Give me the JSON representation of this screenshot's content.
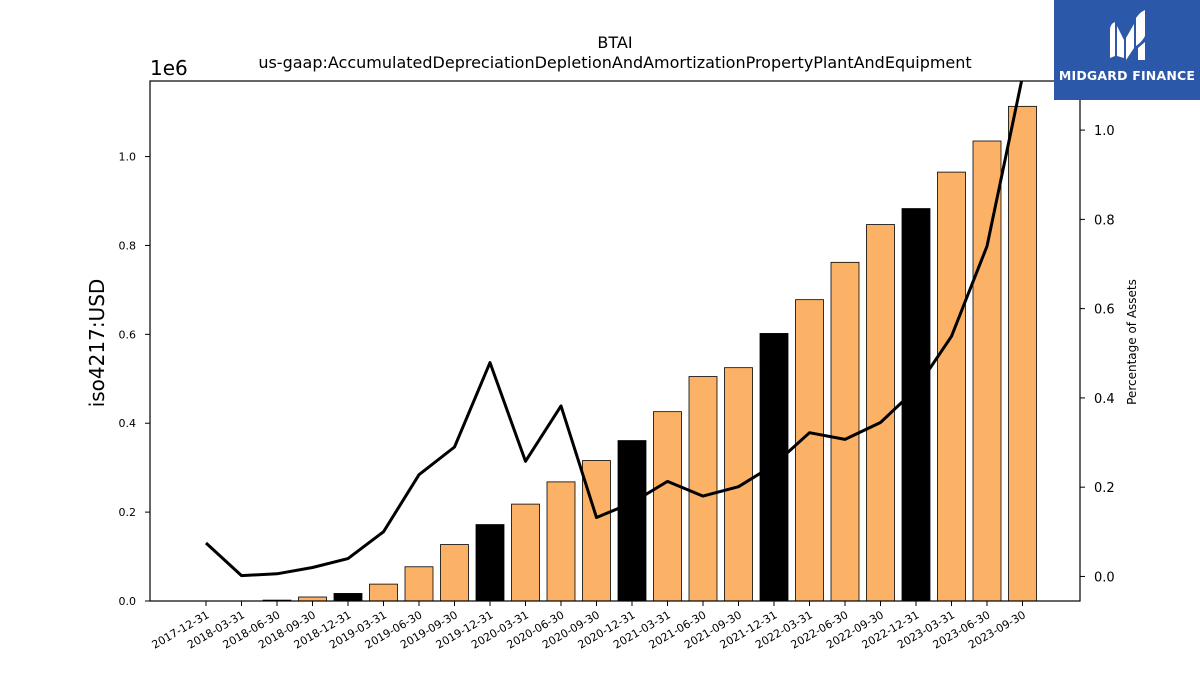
{
  "brand": {
    "name": "MIDGARD FINANCE",
    "icon": "midgard-logo-icon",
    "background": "#2b58a8"
  },
  "chart_data": {
    "type": "bar",
    "title": "BTAI",
    "subtitle": "us-gaap:AccumulatedDepreciationDepletionAndAmortizationPropertyPlantAndEquipment",
    "ylabel": "iso4217:USD",
    "y_scale_label": "1e6",
    "y2label": "Percentage of Assets",
    "ylim": [
      0,
      1170000
    ],
    "y2lim": [
      -0.055,
      1.11
    ],
    "yticks": [
      {
        "value": 0,
        "label": "0.0"
      },
      {
        "value": 200000,
        "label": "0.2"
      },
      {
        "value": 400000,
        "label": "0.4"
      },
      {
        "value": 600000,
        "label": "0.6"
      },
      {
        "value": 800000,
        "label": "0.8"
      },
      {
        "value": 1000000,
        "label": "1.0"
      }
    ],
    "y2ticks": [
      {
        "value": 0.0,
        "label": "0.0"
      },
      {
        "value": 0.2,
        "label": "0.2"
      },
      {
        "value": 0.4,
        "label": "0.4"
      },
      {
        "value": 0.6,
        "label": "0.6"
      },
      {
        "value": 0.8,
        "label": "0.8"
      },
      {
        "value": 1.0,
        "label": "1.0"
      }
    ],
    "categories": [
      "2017-12-31",
      "2018-03-31",
      "2018-06-30",
      "2018-09-30",
      "2018-12-31",
      "2019-03-31",
      "2019-06-30",
      "2019-09-30",
      "2019-12-31",
      "2020-03-31",
      "2020-06-30",
      "2020-09-30",
      "2020-12-31",
      "2021-03-31",
      "2021-06-30",
      "2021-09-30",
      "2021-12-31",
      "2022-03-31",
      "2022-06-30",
      "2022-09-30",
      "2022-12-31",
      "2023-03-31",
      "2023-06-30",
      "2023-09-30"
    ],
    "series": [
      {
        "kind": "bar",
        "axis": "left",
        "values": [
          0,
          0,
          2000,
          9000,
          17000,
          38000,
          77000,
          127000,
          172000,
          218000,
          268000,
          316000,
          361000,
          426000,
          505000,
          525000,
          602000,
          678000,
          762000,
          847000,
          883000,
          965000,
          1035000,
          1113000
        ],
        "colors": [
          "#fbb266",
          "#fbb266",
          "#fbb266",
          "#fbb266",
          "#000000",
          "#fbb266",
          "#fbb266",
          "#fbb266",
          "#000000",
          "#fbb266",
          "#fbb266",
          "#fbb266",
          "#000000",
          "#fbb266",
          "#fbb266",
          "#fbb266",
          "#000000",
          "#fbb266",
          "#fbb266",
          "#fbb266",
          "#000000",
          "#fbb266",
          "#fbb266",
          "#fbb266"
        ]
      },
      {
        "kind": "line",
        "axis": "right",
        "color": "#000000",
        "values": [
          0.075,
          0.002,
          0.006,
          0.02,
          0.04,
          0.1,
          0.228,
          0.29,
          0.479,
          0.258,
          0.382,
          0.132,
          0.165,
          0.213,
          0.18,
          0.201,
          0.25,
          0.322,
          0.307,
          0.345,
          0.42,
          0.538,
          0.74,
          1.12
        ]
      }
    ],
    "colors": {
      "bar": "#fbb266",
      "bar_highlight": "#000000",
      "line": "#000000"
    },
    "grid": false,
    "legend": "none"
  }
}
